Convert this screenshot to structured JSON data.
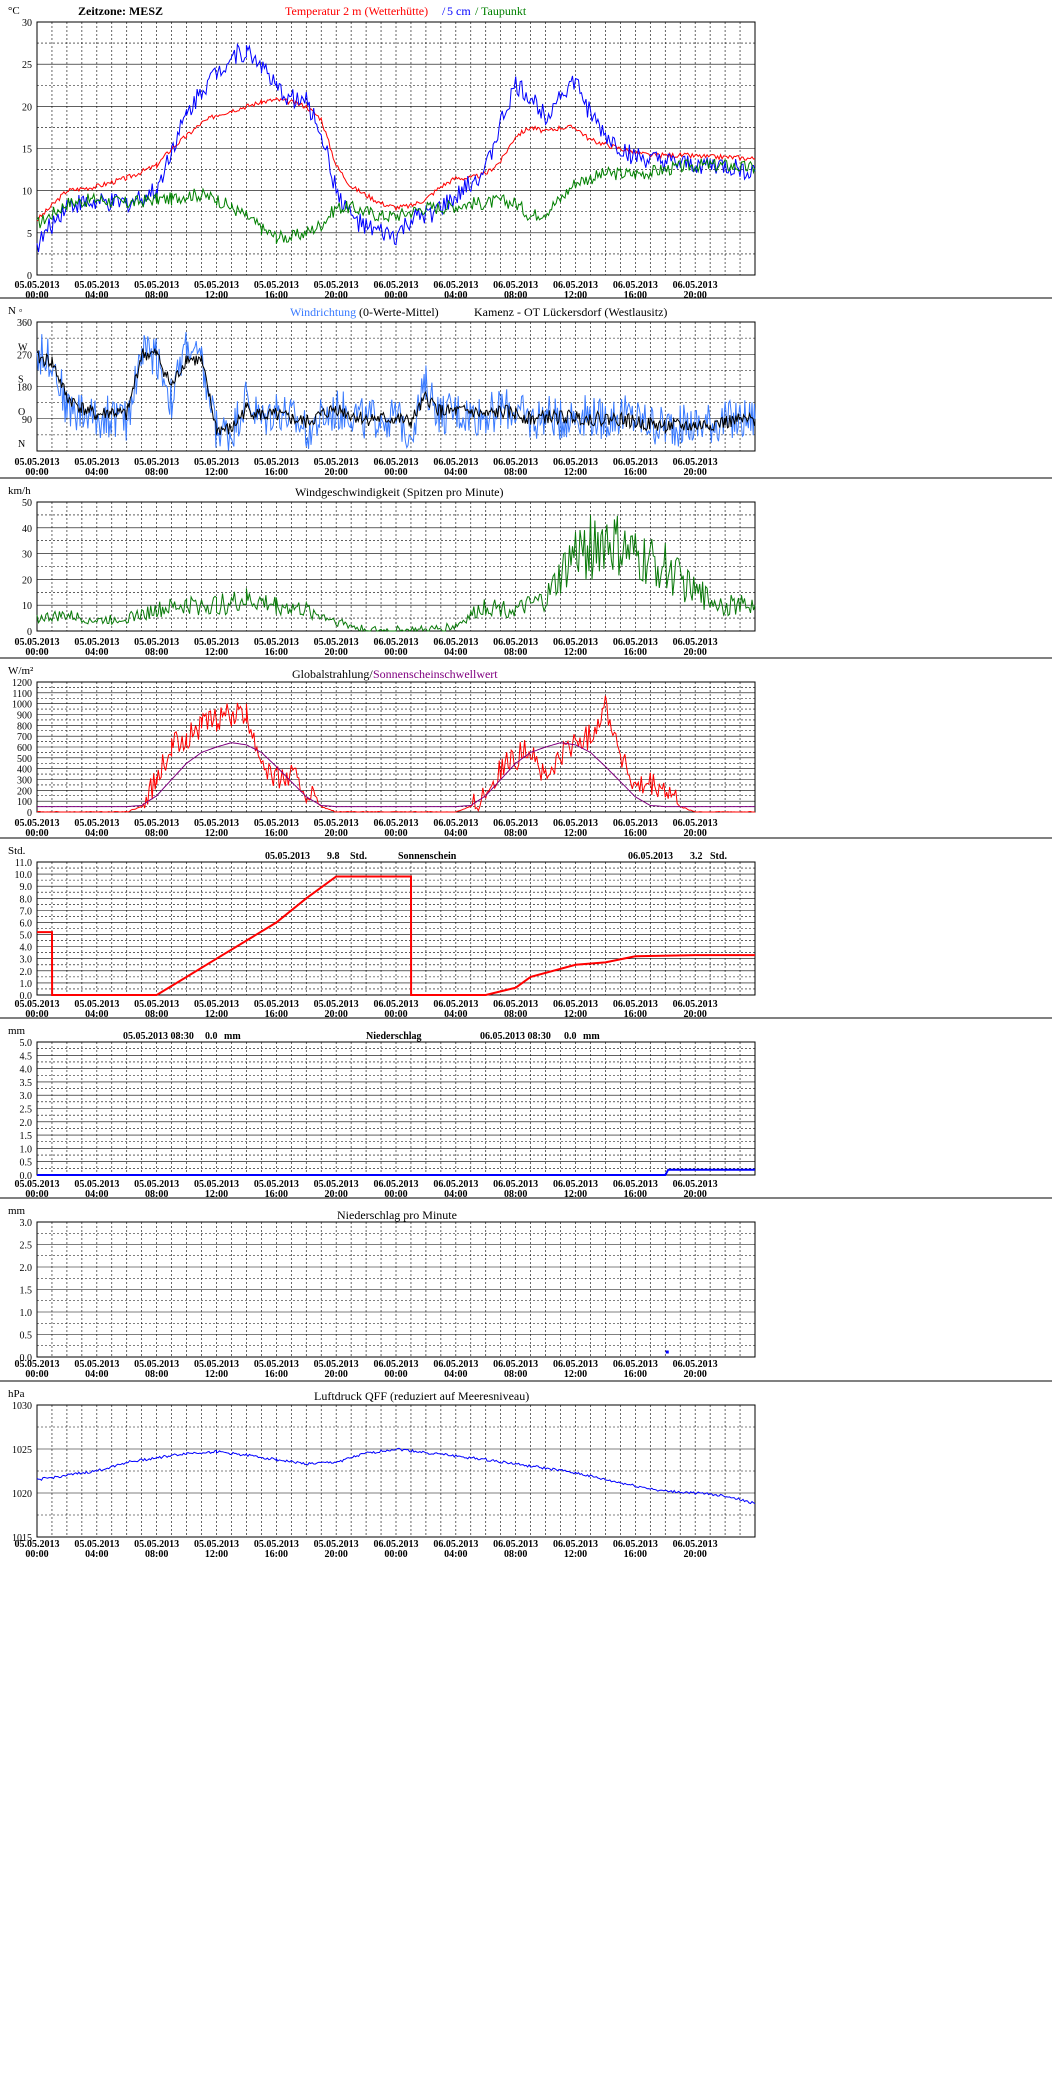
{
  "x_ticks": [
    "05.05.2013\n00:00",
    "05.05.2013\n04:00",
    "05.05.2013\n08:00",
    "05.05.2013\n12:00",
    "05.05.2013\n16:00",
    "05.05.2013\n20:00",
    "06.05.2013\n00:00",
    "06.05.2013\n04:00",
    "06.05.2013\n08:00",
    "06.05.2013\n12:00",
    "06.05.2013\n16:00",
    "06.05.2013\n20:00"
  ],
  "colors": {
    "red": "#ff0000",
    "blue": "#0000ff",
    "green": "#008000",
    "purple": "#800080",
    "black": "#000000",
    "lightblue": "#3a7bff",
    "wind_green": "#0a7a0a"
  },
  "panels": [
    {
      "id": "temperature",
      "unit": "°C",
      "yticks": [
        "0",
        "5",
        "10",
        "15",
        "20",
        "25",
        "30"
      ],
      "header": [
        {
          "text": "Zeitzone: MESZ",
          "color": "#000000",
          "bold": true
        },
        {
          "text": "Temperatur 2 m (Wetterhütte)",
          "color": "#ff0000"
        },
        {
          "text": "/",
          "color": "#0000ff"
        },
        {
          "text": "5 cm",
          "color": "#0000ff"
        },
        {
          "text": "/",
          "color": "#008000"
        },
        {
          "text": "Taupunkt",
          "color": "#008000"
        }
      ]
    },
    {
      "id": "wind_direction",
      "unit": "N ◦",
      "yticks": [
        "N",
        "O",
        "S",
        "W",
        "360",
        "90",
        "180",
        "270"
      ],
      "header": [
        {
          "text": "Windrichtung",
          "color": "#3a7bff"
        },
        {
          "text": "(0-Werte-Mittel)",
          "color": "#000000"
        },
        {
          "text": "Kamenz - OT Lückersdorf (Westlausitz)",
          "color": "#000000"
        }
      ]
    },
    {
      "id": "wind_speed",
      "unit": "km/h",
      "yticks": [
        "0",
        "10",
        "20",
        "30",
        "40",
        "50"
      ],
      "header": [
        {
          "text": "Windgeschwindigkeit (Spitzen pro Minute)",
          "color": "#000000"
        }
      ]
    },
    {
      "id": "radiation",
      "unit": "W/m²",
      "yticks": [
        "0",
        "100",
        "200",
        "300",
        "400",
        "500",
        "600",
        "700",
        "800",
        "900",
        "1000",
        "1100",
        "1200"
      ],
      "header": [
        {
          "text": "Globalstrahlung/",
          "color": "#000000"
        },
        {
          "text": "Sonnenscheinschwellwert",
          "color": "#800080"
        }
      ]
    },
    {
      "id": "sunshine",
      "unit": "Std.",
      "yticks": [
        "0.0",
        "1.0",
        "2.0",
        "3.0",
        "4.0",
        "5.0",
        "6.0",
        "7.0",
        "8.0",
        "9.0",
        "10.0",
        "11.0"
      ],
      "header": [
        {
          "text": "05.05.2013",
          "color": "#000000"
        },
        {
          "text": "9.8",
          "color": "#000000"
        },
        {
          "text": "Std.",
          "color": "#000000"
        },
        {
          "text": "Sonnenschein",
          "color": "#000000"
        },
        {
          "text": "06.05.2013",
          "color": "#000000"
        },
        {
          "text": "3.2",
          "color": "#000000"
        },
        {
          "text": "Std.",
          "color": "#000000"
        }
      ]
    },
    {
      "id": "precipitation",
      "unit": "mm",
      "yticks": [
        "0.0",
        "0.5",
        "1.0",
        "1.5",
        "2.0",
        "2.5",
        "3.0",
        "3.5",
        "4.0",
        "4.5",
        "5.0"
      ],
      "header": [
        {
          "text": "05.05.2013 08:30",
          "color": "#000000"
        },
        {
          "text": "0.0",
          "color": "#000000"
        },
        {
          "text": "mm",
          "color": "#000000"
        },
        {
          "text": "Niederschlag",
          "color": "#000000"
        },
        {
          "text": "06.05.2013 08:30",
          "color": "#000000"
        },
        {
          "text": "0.0",
          "color": "#000000"
        },
        {
          "text": "mm",
          "color": "#000000"
        }
      ]
    },
    {
      "id": "precip_minute",
      "unit": "mm",
      "yticks": [
        "0.0",
        "0.5",
        "1.0",
        "1.5",
        "2.0",
        "2.5",
        "3.0"
      ],
      "header": [
        {
          "text": "Niederschlag pro Minute",
          "color": "#000000"
        }
      ]
    },
    {
      "id": "pressure",
      "unit": "hPa",
      "yticks": [
        "1015",
        "1020",
        "1025",
        "1030"
      ],
      "header": [
        {
          "text": "Luftdruck QFF (reduziert auf Meeresniveau)",
          "color": "#000000"
        }
      ]
    }
  ],
  "chart_data": [
    {
      "type": "line",
      "id": "temperature",
      "x_hours": [
        0,
        2,
        4,
        6,
        8,
        9,
        10,
        11,
        12,
        13,
        14,
        15,
        16,
        17,
        18,
        19,
        20,
        21,
        22,
        23,
        24,
        25,
        26,
        27,
        28,
        29,
        30,
        31,
        32,
        33,
        34,
        35,
        36,
        37,
        38,
        39,
        40,
        41,
        42,
        43,
        44,
        45,
        46,
        47,
        48
      ],
      "ylim": [
        0,
        30
      ],
      "series": [
        {
          "name": "Temperatur 2 m (Wetterhütte)",
          "color": "#ff0000",
          "values": [
            6.5,
            10,
            10.5,
            11.5,
            13,
            15,
            16.5,
            18,
            19,
            19.5,
            20,
            20.5,
            20.8,
            20.5,
            20,
            18.5,
            13,
            10.5,
            9.5,
            8.5,
            8,
            8.2,
            9,
            10.5,
            11.5,
            11.5,
            12,
            13.5,
            16.5,
            17.5,
            17,
            17.5,
            17.5,
            16,
            15.5,
            15,
            14.5,
            14.2,
            14.2,
            14.2,
            14.1,
            14,
            14,
            13.9,
            13.8
          ]
        },
        {
          "name": "5 cm",
          "color": "#0000ff",
          "values": [
            3.5,
            8.5,
            8.5,
            8.5,
            10,
            15,
            19,
            22,
            24,
            26,
            26.5,
            25,
            22,
            21,
            20.5,
            17,
            10,
            7,
            5.5,
            5,
            4.5,
            6.5,
            7,
            8,
            9,
            11,
            12.5,
            18,
            22.5,
            21,
            19,
            21.5,
            23,
            19,
            16.5,
            15,
            14,
            13.5,
            13.3,
            13,
            13,
            13,
            12.8,
            12.5,
            12.3
          ]
        },
        {
          "name": "Taupunkt",
          "color": "#008000",
          "values": [
            6,
            8.5,
            9,
            8.5,
            9,
            9,
            9.5,
            9.5,
            9,
            8,
            7,
            5.5,
            4.5,
            4.5,
            5,
            6,
            8,
            8,
            7.5,
            7,
            7,
            7.5,
            8,
            8,
            8.2,
            8.5,
            8.5,
            8.8,
            8.5,
            7,
            7.5,
            9,
            11,
            11.5,
            12,
            12,
            12,
            12.2,
            12.5,
            12.8,
            13,
            13,
            13,
            12.8,
            12.7
          ]
        }
      ]
    },
    {
      "type": "scatter",
      "id": "wind_direction",
      "ylim": [
        0,
        360
      ],
      "note_units": "degrees",
      "x_hours": [
        0,
        1,
        2,
        3,
        4,
        5,
        6,
        7,
        8,
        9,
        10,
        11,
        12,
        13,
        14,
        15,
        16,
        17,
        18,
        19,
        20,
        21,
        22,
        23,
        24,
        25,
        26,
        27,
        28,
        29,
        30,
        31,
        32,
        33,
        34,
        35,
        36,
        37,
        38,
        39,
        40,
        41,
        42,
        43,
        44,
        45,
        46,
        47,
        48
      ],
      "series": [
        {
          "name": "Windrichtung",
          "color": "#3a7bff",
          "values": [
            270,
            260,
            120,
            110,
            90,
            100,
            80,
            280,
            270,
            140,
            300,
            240,
            60,
            50,
            150,
            80,
            120,
            90,
            60,
            90,
            110,
            110,
            80,
            100,
            90,
            60,
            180,
            100,
            110,
            100,
            100,
            120,
            110,
            80,
            100,
            90,
            100,
            100,
            90,
            100,
            90,
            80,
            70,
            70,
            70,
            80,
            80,
            85,
            90
          ]
        },
        {
          "name": "0-Werte-Mittel",
          "color": "#000000",
          "values": [
            260,
            250,
            150,
            120,
            100,
            110,
            100,
            270,
            270,
            180,
            260,
            250,
            60,
            60,
            120,
            100,
            100,
            90,
            80,
            100,
            120,
            100,
            90,
            90,
            90,
            80,
            150,
            110,
            110,
            110,
            100,
            110,
            105,
            90,
            95,
            95,
            95,
            90,
            90,
            90,
            80,
            75,
            70,
            70,
            70,
            75,
            80,
            85,
            85
          ]
        }
      ]
    },
    {
      "type": "line",
      "id": "wind_speed",
      "ylim": [
        0,
        50
      ],
      "x_hours": [
        0,
        2,
        4,
        6,
        8,
        10,
        12,
        14,
        16,
        18,
        20,
        22,
        24,
        26,
        28,
        30,
        32,
        34,
        36,
        38,
        40,
        42,
        44,
        46,
        48
      ],
      "series": [
        {
          "name": "Windgeschwindigkeit",
          "color": "#0a7a0a",
          "values": [
            5,
            6,
            4,
            5,
            8,
            10,
            10,
            12,
            10,
            8,
            4,
            0,
            0,
            0,
            2,
            10,
            8,
            12,
            30,
            35,
            28,
            25,
            15,
            10,
            10
          ]
        }
      ]
    },
    {
      "type": "line",
      "id": "radiation",
      "ylim": [
        0,
        1200
      ],
      "x_hours": [
        0,
        2,
        4,
        6,
        7,
        8,
        9,
        10,
        11,
        12,
        13,
        14,
        15,
        16,
        17,
        18,
        19,
        20,
        21,
        22,
        24,
        26,
        28,
        29,
        30,
        31,
        32,
        33,
        34,
        35,
        36,
        37,
        38,
        39,
        40,
        41,
        42,
        43,
        44,
        46,
        48
      ],
      "series": [
        {
          "name": "Globalstrahlung",
          "color": "#ff0000",
          "values": [
            0,
            0,
            0,
            0,
            50,
            300,
            600,
            700,
            800,
            850,
            900,
            880,
            500,
            300,
            350,
            200,
            50,
            0,
            0,
            0,
            0,
            0,
            0,
            50,
            200,
            400,
            500,
            600,
            300,
            500,
            650,
            700,
            1000,
            550,
            200,
            250,
            200,
            50,
            0,
            0,
            0
          ]
        },
        {
          "name": "Sonnenscheinschwellwert",
          "color": "#800080",
          "values": [
            50,
            50,
            50,
            50,
            60,
            150,
            300,
            450,
            550,
            600,
            640,
            620,
            550,
            420,
            280,
            140,
            60,
            50,
            50,
            50,
            50,
            50,
            50,
            60,
            150,
            300,
            450,
            550,
            600,
            640,
            620,
            550,
            420,
            280,
            140,
            60,
            50,
            50,
            50,
            50,
            50
          ]
        }
      ]
    },
    {
      "type": "line",
      "id": "sunshine",
      "ylim": [
        0,
        11
      ],
      "x_hours": [
        0,
        1,
        1.01,
        8,
        10,
        12,
        14,
        16,
        18,
        20,
        24,
        25,
        25.01,
        30,
        32,
        33,
        36,
        38,
        40,
        44,
        48
      ],
      "series": [
        {
          "name": "Sonnenschein",
          "color": "#ff0000",
          "values": [
            5.2,
            5.2,
            0,
            0,
            1.5,
            3,
            4.5,
            6,
            8,
            9.8,
            9.8,
            9.8,
            0,
            0,
            0.6,
            1.5,
            2.5,
            2.7,
            3.2,
            3.3,
            3.3
          ]
        }
      ]
    },
    {
      "type": "line",
      "id": "precipitation",
      "ylim": [
        0,
        5
      ],
      "x_hours": [
        0,
        42,
        42.2,
        48
      ],
      "series": [
        {
          "name": "Niederschlag",
          "color": "#0000ff",
          "values": [
            0,
            0,
            0.2,
            0.2
          ]
        }
      ]
    },
    {
      "type": "scatter",
      "id": "precip_minute",
      "ylim": [
        0,
        3
      ],
      "x_hours": [
        42.1
      ],
      "series": [
        {
          "name": "Niederschlag pro Minute",
          "color": "#0000ff",
          "values": [
            0.1
          ]
        }
      ]
    },
    {
      "type": "line",
      "id": "pressure",
      "ylim": [
        1015,
        1030
      ],
      "x_hours": [
        0,
        2,
        4,
        6,
        8,
        10,
        12,
        14,
        16,
        18,
        20,
        22,
        24,
        26,
        28,
        30,
        32,
        34,
        36,
        38,
        40,
        42,
        44,
        46,
        48
      ],
      "series": [
        {
          "name": "Luftdruck QFF",
          "color": "#0000ff",
          "values": [
            1021.5,
            1022,
            1022.5,
            1023.5,
            1024,
            1024.5,
            1024.7,
            1024.3,
            1023.8,
            1023.3,
            1023.5,
            1024.5,
            1025,
            1024.6,
            1024.2,
            1023.8,
            1023.3,
            1022.8,
            1022.3,
            1021.5,
            1020.8,
            1020.2,
            1020,
            1019.7,
            1018.8
          ]
        }
      ]
    }
  ]
}
